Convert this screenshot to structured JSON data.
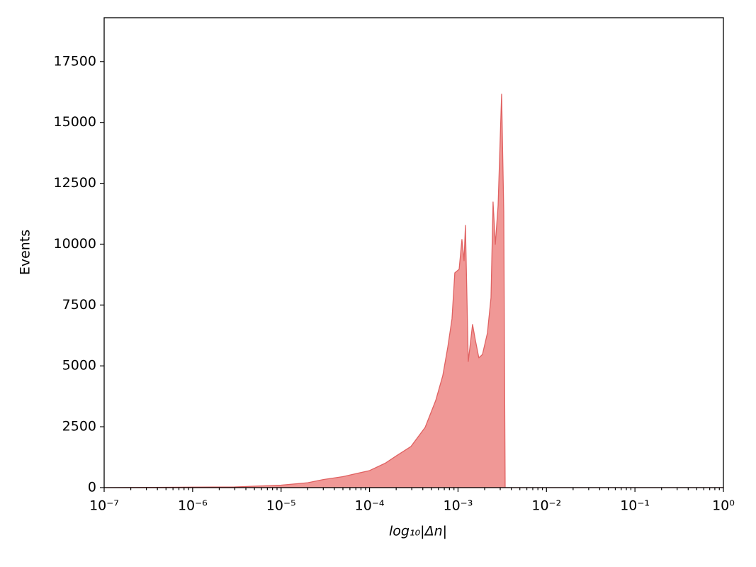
{
  "chart_data": {
    "type": "area",
    "xlabel": "log₁₀|Δn|",
    "ylabel": "Events",
    "xscale": "log",
    "x": [
      1e-07,
      1e-06,
      3e-06,
      1e-05,
      2e-05,
      3e-05,
      5e-05,
      0.0001,
      0.00015,
      0.0002,
      0.000294,
      0.000425,
      0.00056,
      0.000673,
      0.000766,
      0.000855,
      0.00092,
      0.00103,
      0.001107,
      0.00117,
      0.001213,
      0.001306,
      0.00146,
      0.00157,
      0.00172,
      0.00189,
      0.00215,
      0.00236,
      0.00249,
      0.00264,
      0.00284,
      0.00311,
      0.00329,
      0.00341,
      1
    ],
    "values": [
      0,
      20,
      30,
      100,
      200,
      330,
      450,
      700,
      1000,
      1300,
      1690,
      2475,
      3580,
      4600,
      5765,
      6930,
      8820,
      8970,
      10190,
      9320,
      10770,
      5180,
      6700,
      6060,
      5330,
      5470,
      6350,
      7800,
      11730,
      9990,
      11590,
      16160,
      11300,
      0,
      0
    ],
    "color": "#f09896",
    "line_color": "#e06262",
    "xlim": [
      1e-07,
      1
    ],
    "xticks": [
      {
        "value": 1e-07,
        "label": "10⁻⁷"
      },
      {
        "value": 1e-06,
        "label": "10⁻⁶"
      },
      {
        "value": 1e-05,
        "label": "10⁻⁵"
      },
      {
        "value": 0.0001,
        "label": "10⁻⁴"
      },
      {
        "value": 0.001,
        "label": "10⁻³"
      },
      {
        "value": 0.01,
        "label": "10⁻²"
      },
      {
        "value": 0.1,
        "label": "10⁻¹"
      },
      {
        "value": 1,
        "label": "10⁰"
      }
    ],
    "ylim": [
      0,
      19300
    ],
    "yticks": [
      0,
      2500,
      5000,
      7500,
      10000,
      12500,
      15000,
      17500
    ],
    "grid": false
  }
}
